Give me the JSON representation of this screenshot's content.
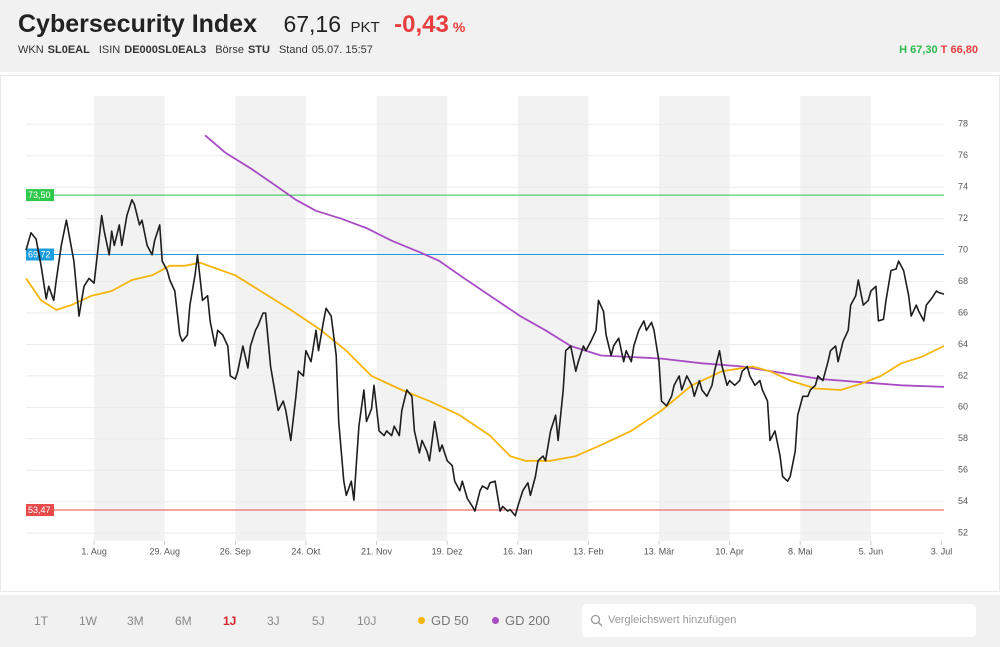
{
  "header": {
    "title": "Cybersecurity Index",
    "price": "67,16",
    "price_unit": "PKT",
    "change": "-0,43",
    "change_unit": "%",
    "fields": [
      {
        "label": "WKN",
        "value": "SL0EAL"
      },
      {
        "label": "ISIN",
        "value": "DE000SL0EAL3"
      },
      {
        "label": "Börse",
        "value": "STU"
      },
      {
        "label": "Stand",
        "value": "05.07. 15:57"
      }
    ],
    "high": {
      "label": "H",
      "value": "67,30"
    },
    "low": {
      "label": "T",
      "value": "66,80"
    }
  },
  "chart_data": {
    "type": "line",
    "series": [
      {
        "color": "#1e1e1e",
        "x": [
          0,
          2,
          4,
          6,
          8,
          9,
          11,
          12,
          14,
          16,
          19,
          21,
          23,
          25,
          27,
          28,
          30,
          31,
          33,
          34,
          35,
          37,
          38,
          40,
          42,
          43,
          45,
          46,
          48,
          50,
          51,
          53,
          54,
          56,
          57,
          59,
          61,
          62,
          64,
          65,
          67,
          68,
          70,
          72,
          73,
          75,
          76,
          78,
          80,
          81,
          83,
          84,
          86,
          88,
          89,
          91,
          92,
          94,
          95,
          97,
          99,
          100,
          102,
          103,
          105,
          107,
          108,
          110,
          111,
          113,
          115,
          116,
          118,
          119,
          121,
          123,
          124,
          126,
          127,
          129,
          130,
          132,
          134,
          135,
          137,
          138,
          140,
          142,
          143,
          145,
          146,
          148,
          149,
          151,
          153,
          154,
          156,
          157,
          159,
          160,
          162,
          164,
          165,
          167,
          169,
          170,
          172,
          173,
          175,
          177,
          178,
          180,
          181,
          183,
          184,
          186,
          188,
          189,
          191,
          192,
          194,
          195,
          197,
          199,
          200,
          202,
          203,
          205,
          206,
          208,
          210,
          211,
          213,
          214,
          216,
          218,
          219,
          221,
          222,
          224,
          226,
          227,
          229,
          230,
          232,
          233,
          235,
          237,
          238,
          240,
          241,
          243,
          245,
          246,
          248,
          249,
          251,
          252,
          254,
          256,
          257,
          259,
          260,
          262,
          264,
          265,
          267,
          268,
          270,
          272,
          273,
          275,
          276,
          278,
          279,
          281,
          283,
          284,
          286,
          287,
          289,
          291,
          292,
          294,
          295,
          297,
          299,
          300,
          302,
          303,
          305,
          306,
          308,
          310,
          311,
          313,
          314,
          316,
          318,
          319,
          321,
          322,
          324,
          326,
          327,
          329,
          330,
          332,
          334,
          335,
          337,
          338,
          340,
          341,
          343,
          345,
          346,
          348,
          350,
          351,
          353,
          354,
          356,
          357,
          359,
          361,
          362,
          364
        ],
        "values": [
          70.0,
          71.1,
          70.7,
          69.0,
          66.9,
          67.7,
          66.8,
          68.1,
          70.3,
          71.9,
          69.3,
          65.8,
          67.7,
          68.2,
          67.9,
          69.3,
          72.2,
          71.2,
          69.7,
          71.2,
          70.3,
          71.6,
          70.3,
          72.2,
          73.2,
          72.9,
          71.6,
          71.9,
          70.3,
          69.7,
          70.6,
          71.6,
          69.3,
          68.7,
          68.1,
          67.4,
          64.6,
          64.2,
          64.6,
          66.5,
          68.4,
          69.7,
          66.8,
          67.1,
          65.5,
          63.9,
          64.9,
          64.6,
          63.9,
          62.0,
          61.8,
          62.3,
          63.9,
          62.5,
          63.9,
          64.9,
          65.2,
          66.0,
          66.0,
          62.6,
          60.7,
          59.8,
          60.4,
          59.8,
          57.9,
          60.7,
          62.3,
          62.0,
          63.6,
          62.9,
          64.9,
          63.6,
          65.5,
          66.3,
          65.8,
          63.3,
          59.1,
          55.3,
          54.4,
          55.3,
          54.1,
          58.8,
          61.1,
          59.1,
          59.9,
          61.4,
          58.5,
          58.2,
          58.5,
          58.2,
          58.8,
          58.2,
          59.8,
          61.1,
          60.7,
          58.5,
          57.1,
          57.9,
          57.2,
          56.6,
          59.1,
          57.2,
          57.6,
          56.6,
          56.3,
          55.3,
          54.7,
          55.3,
          54.2,
          53.7,
          53.4,
          54.7,
          55.0,
          54.8,
          55.2,
          55.3,
          53.4,
          53.7,
          53.4,
          53.5,
          53.1,
          53.7,
          54.7,
          55.2,
          54.4,
          55.6,
          56.6,
          56.9,
          56.6,
          58.5,
          59.5,
          57.9,
          61.1,
          63.6,
          63.9,
          62.3,
          62.9,
          63.9,
          63.6,
          64.2,
          64.9,
          66.8,
          66.1,
          64.6,
          63.3,
          63.9,
          64.4,
          62.9,
          63.6,
          62.9,
          63.9,
          64.9,
          65.5,
          64.9,
          65.4,
          64.9,
          62.9,
          60.4,
          60.1,
          60.7,
          61.4,
          62.0,
          61.1,
          62.0,
          61.4,
          60.7,
          61.7,
          61.1,
          60.7,
          61.4,
          62.3,
          63.6,
          62.6,
          61.4,
          61.7,
          61.4,
          61.7,
          62.3,
          62.6,
          62.0,
          61.4,
          61.7,
          61.1,
          60.4,
          57.9,
          58.5,
          56.9,
          55.6,
          55.3,
          55.6,
          57.2,
          59.5,
          60.7,
          60.7,
          61.1,
          61.4,
          62.0,
          61.7,
          62.9,
          63.6,
          63.9,
          62.9,
          64.2,
          64.9,
          66.5,
          67.1,
          68.1,
          66.5,
          66.8,
          67.4,
          67.7,
          65.5,
          65.6,
          66.8,
          68.7,
          68.8,
          69.3,
          68.7,
          67.1,
          65.8,
          66.5,
          66.1,
          65.5,
          66.5,
          66.9,
          67.4,
          67.3,
          67.2
        ]
      },
      {
        "name": "GD 50",
        "color": "#f5b50a",
        "x": [
          0,
          6,
          12,
          18,
          26,
          34,
          42,
          50,
          57,
          63,
          69,
          76,
          83,
          93,
          105,
          117,
          127,
          137,
          149,
          160,
          172,
          184,
          192,
          198,
          208,
          218,
          228,
          240,
          252,
          264,
          276,
          288,
          295,
          303,
          313,
          323,
          331,
          339,
          347,
          355,
          364
        ],
        "values": [
          68.2,
          66.8,
          66.2,
          66.5,
          67.1,
          67.4,
          68.1,
          68.4,
          69.0,
          69.0,
          69.2,
          68.8,
          68.4,
          67.4,
          66.2,
          64.9,
          63.6,
          62.0,
          61.1,
          60.4,
          59.5,
          58.2,
          56.9,
          56.6,
          56.6,
          56.9,
          57.6,
          58.5,
          59.8,
          61.4,
          62.3,
          62.6,
          62.3,
          61.7,
          61.2,
          61.1,
          61.5,
          62.0,
          62.8,
          63.2,
          63.9
        ]
      },
      {
        "name": "GD 200",
        "color": "#a84cc4",
        "x": [
          71,
          79,
          89,
          99,
          107,
          115,
          125,
          135,
          145,
          157,
          164,
          172,
          184,
          196,
          206,
          216,
          228,
          240,
          252,
          268,
          284,
          299,
          315,
          331,
          347,
          364
        ],
        "values": [
          77.3,
          76.2,
          75.2,
          74.1,
          73.2,
          72.5,
          72.0,
          71.4,
          70.6,
          69.8,
          69.3,
          68.4,
          67.1,
          65.8,
          64.9,
          63.9,
          63.3,
          63.2,
          63.1,
          62.8,
          62.6,
          62.2,
          61.8,
          61.6,
          61.4,
          61.3
        ]
      }
    ],
    "reference_lines": [
      {
        "value": 73.5,
        "label": "73,50",
        "color": "#2ec84a"
      },
      {
        "value": 69.72,
        "label": "69,72",
        "color": "#1a9ee0"
      },
      {
        "value": 53.47,
        "label": "53,47",
        "color": "#e84a4a"
      }
    ],
    "xlim": [
      0,
      364
    ],
    "xticks": [
      {
        "value": 27,
        "label": "1. Aug"
      },
      {
        "value": 55,
        "label": "29. Aug"
      },
      {
        "value": 83,
        "label": "26. Sep"
      },
      {
        "value": 111,
        "label": "24. Okt"
      },
      {
        "value": 139,
        "label": "21. Nov"
      },
      {
        "value": 167,
        "label": "19. Dez"
      },
      {
        "value": 195,
        "label": "16. Jan"
      },
      {
        "value": 223,
        "label": "13. Feb"
      },
      {
        "value": 251,
        "label": "13. Mär"
      },
      {
        "value": 279,
        "label": "10. Apr"
      },
      {
        "value": 307,
        "label": "8. Mai"
      },
      {
        "value": 335,
        "label": "5. Jun"
      },
      {
        "value": 363,
        "label": "3. Jul"
      }
    ],
    "ylim": [
      51.5,
      79.8
    ],
    "yticks": [
      52,
      54,
      56,
      58,
      60,
      62,
      64,
      66,
      68,
      70,
      72,
      74,
      76,
      78
    ],
    "grid": true
  },
  "toolbar": {
    "timeframes": [
      "1T",
      "1W",
      "3M",
      "6M",
      "1J",
      "3J",
      "5J",
      "10J"
    ],
    "selected": 4,
    "search_placeholder": "Vergleichswert hinzufügen"
  }
}
